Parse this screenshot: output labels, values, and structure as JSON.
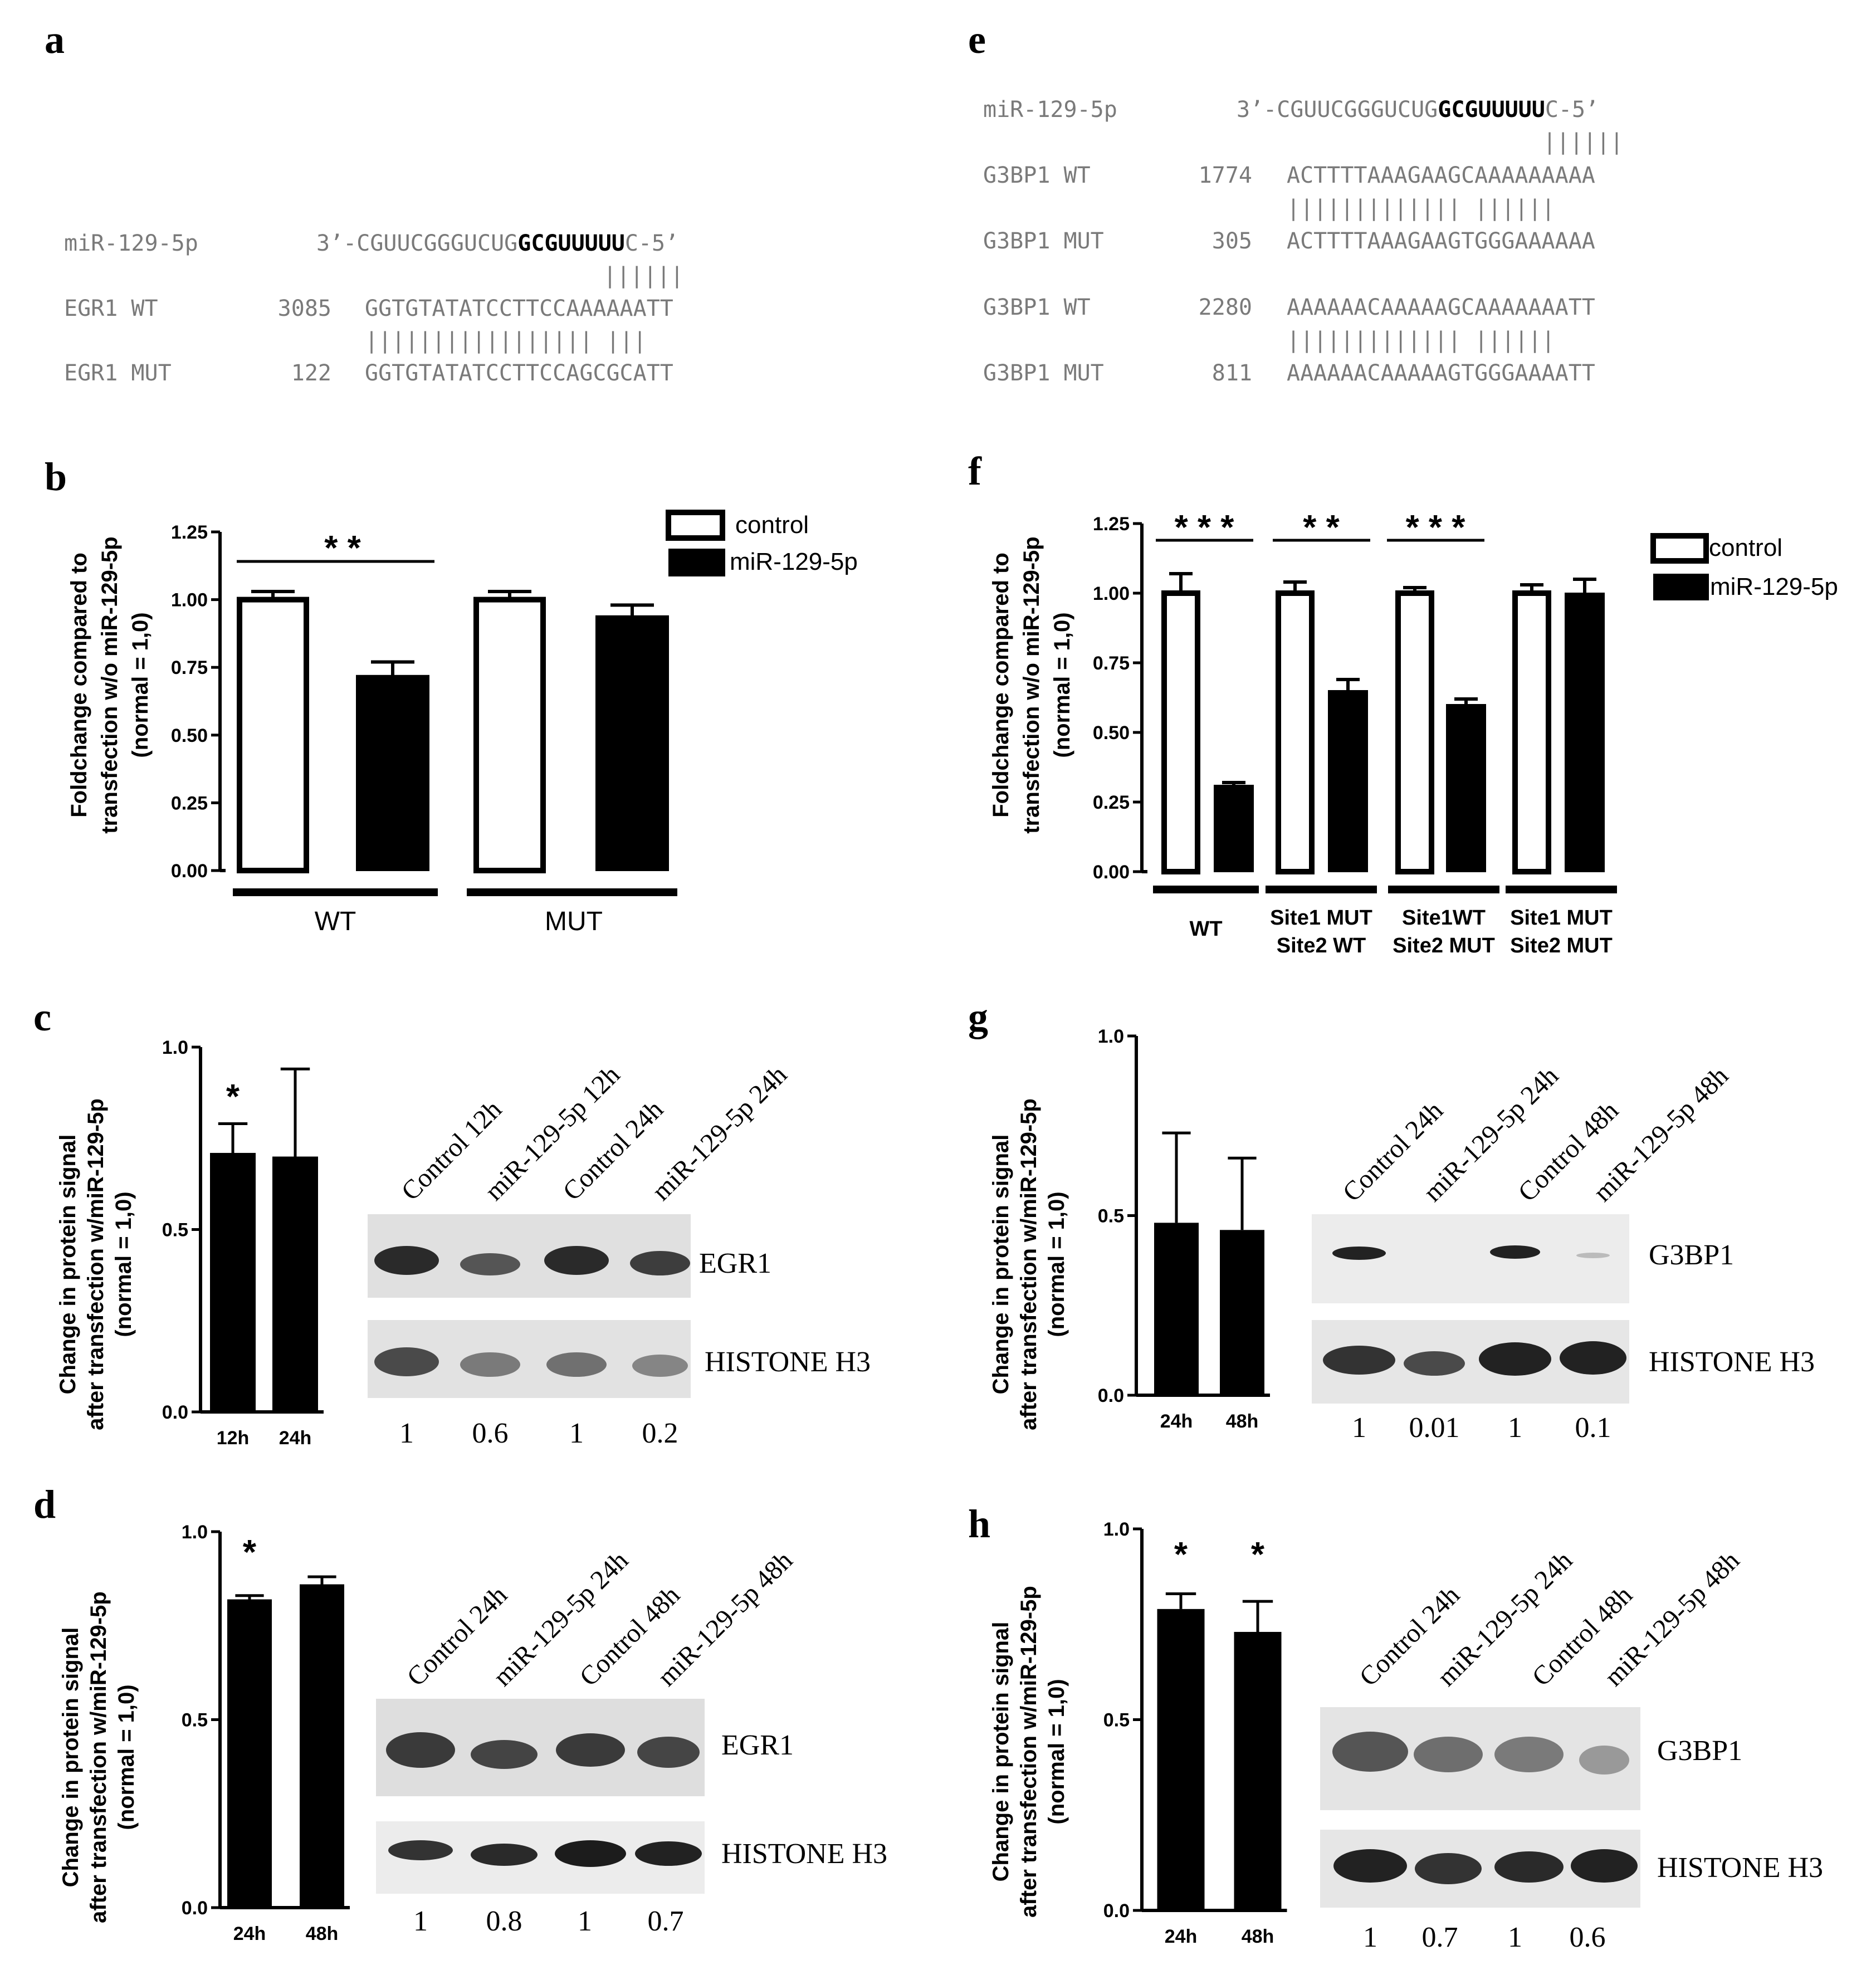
{
  "panels": {
    "a": {
      "letter": "a",
      "rows": [
        {
          "name": "miR-129-5p",
          "pos": "",
          "pre": "3’-CGUUCGGGUCUG",
          "bold": "GCGUUUUU",
          "post": "C-5’"
        },
        {
          "name": "EGR1 WT",
          "pos": "3085",
          "seq": "GGTGTATATCCTTCCAAAAAATT"
        },
        {
          "name": "EGR1 MUT",
          "pos": "122",
          "seq": "GGTGTATATCCTTCCAGCGCATT"
        }
      ],
      "pair_lines": [
        "||||||",
        "|||||||||||||||||      |||"
      ]
    },
    "e": {
      "letter": "e",
      "rows": [
        {
          "name": "miR-129-5p",
          "pos": "",
          "pre": "3’-CGUUCGGGUCUG",
          "bold": "GCGUUUUU",
          "post": "C-5’"
        },
        {
          "name": "G3BP1 WT",
          "pos": "1774",
          "seq": "ACTTTTAAAGAAGCAAAAAAAAA"
        },
        {
          "name": "G3BP1 MUT",
          "pos": "305",
          "seq": "ACTTTTAAAGAAGTGGGAAAAAA"
        },
        {
          "name": "G3BP1 WT",
          "pos": "2280",
          "seq": "AAAAAACAAAAAGCAAAAAAATT"
        },
        {
          "name": "G3BP1 MUT",
          "pos": "811",
          "seq": "AAAAAACAAAAAGTGGGAAAATT"
        }
      ],
      "pair_lines": [
        "||||||",
        "|||||||||||||      ||||||",
        "|||||||||||||      ||||||"
      ]
    },
    "b": {
      "letter": "b",
      "ylabel": [
        "Foldchange compared to",
        "transfection w/o miR-129-5p",
        "(normal = 1,0)"
      ],
      "legend": [
        "control",
        "miR-129-5p"
      ],
      "groups": [
        "WT",
        "MUT"
      ],
      "significance": [
        "* *"
      ]
    },
    "f": {
      "letter": "f",
      "ylabel": [
        "Foldchange compared to",
        "transfection w/o miR-129-5p",
        "(normal = 1,0)"
      ],
      "legend": [
        "control",
        "miR-129-5p"
      ],
      "groups": [
        [
          "WT"
        ],
        [
          "Site1 MUT",
          "Site2 WT"
        ],
        [
          "Site1WT",
          "Site2 MUT"
        ],
        [
          "Site1 MUT",
          "Site2 MUT"
        ]
      ],
      "significance": [
        "* * *",
        "* *",
        "* * *"
      ]
    },
    "c": {
      "letter": "c",
      "ylabel": [
        "Change in protein signal",
        "after transfection w/miR-129-5p",
        "(normal = 1,0)"
      ],
      "lanes": [
        "Control 12h",
        "miR-129-5p 12h",
        "Control 24h",
        "miR-129-5p 24h"
      ],
      "proteins": [
        "EGR1",
        "HISTONE H3"
      ],
      "quant": [
        "1",
        "0.6",
        "1",
        "0.2"
      ],
      "stars": [
        "*"
      ]
    },
    "d": {
      "letter": "d",
      "ylabel": [
        "Change in protein signal",
        "after transfection w/miR-129-5p",
        "(normal = 1,0)"
      ],
      "lanes": [
        "Control 24h",
        "miR-129-5p 24h",
        "Control 48h",
        "miR-129-5p 48h"
      ],
      "proteins": [
        "EGR1",
        "HISTONE H3"
      ],
      "quant": [
        "1",
        "0.8",
        "1",
        "0.7"
      ],
      "stars": [
        "*"
      ]
    },
    "g": {
      "letter": "g",
      "ylabel": [
        "Change in protein signal",
        "after transfection w/miR-129-5p",
        "(normal = 1,0)"
      ],
      "lanes": [
        "Control 24h",
        "miR-129-5p 24h",
        "Control 48h",
        "miR-129-5p 48h"
      ],
      "proteins": [
        "G3BP1",
        "HISTONE H3"
      ],
      "quant": [
        "1",
        "0.01",
        "1",
        "0.1"
      ],
      "stars": []
    },
    "h": {
      "letter": "h",
      "ylabel": [
        "Change in protein signal",
        "after transfection w/miR-129-5p",
        "(normal = 1,0)"
      ],
      "lanes": [
        "Control 24h",
        "miR-129-5p 24h",
        "Control 48h",
        "miR-129-5p 48h"
      ],
      "proteins": [
        "G3BP1",
        "HISTONE H3"
      ],
      "quant": [
        "1",
        "0.7",
        "1",
        "0.6"
      ],
      "stars": [
        "*",
        "*"
      ]
    }
  },
  "chart_data": [
    {
      "panel": "b",
      "type": "bar",
      "categories": [
        "WT",
        "MUT"
      ],
      "series": [
        {
          "name": "control",
          "values": [
            1.0,
            1.0
          ],
          "errors": [
            0.03,
            0.03
          ]
        },
        {
          "name": "miR-129-5p",
          "values": [
            0.72,
            0.94
          ],
          "errors": [
            0.05,
            0.04
          ]
        }
      ],
      "ylim": [
        0,
        1.25
      ],
      "yticks": [
        "0.00",
        "0.25",
        "0.50",
        "0.75",
        "1.00",
        "1.25"
      ],
      "legend": "top-right"
    },
    {
      "panel": "f",
      "type": "bar",
      "categories": [
        "WT",
        "Site1 MUT Site2 WT",
        "Site1WT Site2 MUT",
        "Site1 MUT Site2 MUT"
      ],
      "series": [
        {
          "name": "control",
          "values": [
            1.0,
            1.0,
            1.0,
            1.0
          ],
          "errors": [
            0.07,
            0.04,
            0.02,
            0.03
          ]
        },
        {
          "name": "miR-129-5p",
          "values": [
            0.31,
            0.65,
            0.6,
            1.0
          ],
          "errors": [
            0.01,
            0.04,
            0.02,
            0.05
          ]
        }
      ],
      "ylim": [
        0,
        1.25
      ],
      "yticks": [
        "0.00",
        "0.25",
        "0.50",
        "0.75",
        "1.00",
        "1.25"
      ],
      "legend": "top-right"
    },
    {
      "panel": "c",
      "type": "bar",
      "categories": [
        "12h",
        "24h"
      ],
      "values": [
        0.71,
        0.7
      ],
      "errors": [
        0.08,
        0.24
      ],
      "ylim": [
        0,
        1.0
      ],
      "yticks": [
        "0.0",
        "0.5",
        "1.0"
      ]
    },
    {
      "panel": "d",
      "type": "bar",
      "categories": [
        "24h",
        "48h"
      ],
      "values": [
        0.82,
        0.86
      ],
      "errors": [
        0.01,
        0.02
      ],
      "ylim": [
        0,
        1.0
      ],
      "yticks": [
        "0.0",
        "0.5",
        "1.0"
      ]
    },
    {
      "panel": "g",
      "type": "bar",
      "categories": [
        "24h",
        "48h"
      ],
      "values": [
        0.48,
        0.46
      ],
      "errors": [
        0.25,
        0.2
      ],
      "ylim": [
        0,
        1.0
      ],
      "yticks": [
        "0.0",
        "0.5",
        "1.0"
      ]
    },
    {
      "panel": "h",
      "type": "bar",
      "categories": [
        "24h",
        "48h"
      ],
      "values": [
        0.79,
        0.73
      ],
      "errors": [
        0.04,
        0.08
      ],
      "ylim": [
        0,
        1.0
      ],
      "yticks": [
        "0.0",
        "0.5",
        "1.0"
      ]
    }
  ]
}
